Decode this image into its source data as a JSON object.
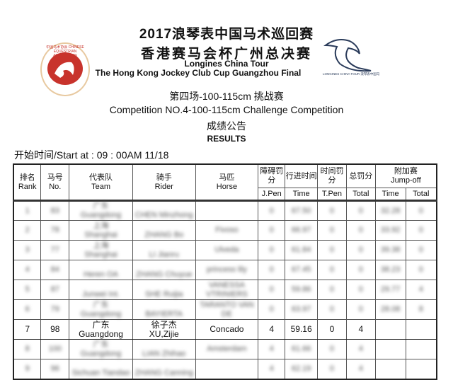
{
  "header": {
    "title_cn_1": "2017浪琴表中国马术巡回赛",
    "title_cn_2": "香港赛马会杯广州总决赛",
    "title_en_1": "Longines China Tour",
    "title_en_2": "The Hong Kong Jockey Club Cup Guangzhou Final",
    "right_logo_text": "LONGINES CHINA TOUR 浪琴表中国马术巡回赛",
    "left_logo_text": "中国马术协会 CHINESE EQUESTRIAN ASSOCIATION"
  },
  "competition": {
    "cn": "第四场-100-115cm 挑战赛",
    "en": "Competition NO.4-100-115cm Challenge Competition",
    "results_cn": "成绩公告",
    "results_en": "RESULTS",
    "start": "开始时间/Start at : 09 : 00AM 11/18"
  },
  "columns": {
    "rank_cn": "排名",
    "rank_en": "Rank",
    "no_cn": "马号",
    "no_en": "No.",
    "team_cn": "代表队",
    "team_en": "Team",
    "rider_cn": "骑手",
    "rider_en": "Rider",
    "horse_cn": "马匹",
    "horse_en": "Horse",
    "jpen_cn": "障碍罚分",
    "jpen_en": "J.Pen",
    "time_cn": "行进时间",
    "time_en": "Time",
    "tpen_cn": "时间罚分",
    "tpen_en": "T.Pen",
    "total_cn": "总罚分",
    "total_en": "Total",
    "jumpoff_cn": "附加赛",
    "jumpoff_en": "Jump-off",
    "jo_time": "Time",
    "jo_total": "Total"
  },
  "rows": [
    {
      "rank": "1",
      "no": "83",
      "team_cn": "广东",
      "team_en": "Guangdong",
      "rider_cn": "",
      "rider_en": "CHEN Minzhong",
      "horse": "",
      "jpen": "0",
      "time": "67.50",
      "tpen": "0",
      "total": "0",
      "jo_time": "32.28",
      "jo_total": "0",
      "blur": true
    },
    {
      "rank": "2",
      "no": "78",
      "team_cn": "上海",
      "team_en": "Shanghai",
      "rider_cn": "",
      "rider_en": "ZHANG Bo",
      "horse": "Fivoso",
      "jpen": "0",
      "time": "66.97",
      "tpen": "0",
      "total": "0",
      "jo_time": "33.92",
      "jo_total": "0",
      "blur": true
    },
    {
      "rank": "3",
      "no": "77",
      "team_cn": "上海",
      "team_en": "Shanghai",
      "rider_cn": "",
      "rider_en": "LI Jianru",
      "horse": "Ulveda",
      "jpen": "0",
      "time": "61.84",
      "tpen": "0",
      "total": "0",
      "jo_time": "39.38",
      "jo_total": "0",
      "blur": true
    },
    {
      "rank": "4",
      "no": "84",
      "team_cn": "",
      "team_en": "Heren OA",
      "rider_cn": "",
      "rider_en": "ZHANG Chuyue",
      "horse": "princess lily",
      "jpen": "0",
      "time": "67.45",
      "tpen": "0",
      "total": "0",
      "jo_time": "38.23",
      "jo_total": "0",
      "blur": true
    },
    {
      "rank": "5",
      "no": "87",
      "team_cn": "",
      "team_en": "Junwei Int.",
      "rider_cn": "",
      "rider_en": "SHE Ruijia",
      "horse": "VANESSA VTRINIERS",
      "jpen": "0",
      "time": "59.86",
      "tpen": "0",
      "total": "0",
      "jo_time": "29.77",
      "jo_total": "4",
      "blur": true
    },
    {
      "rank": "6",
      "no": "79",
      "team_cn": "广东",
      "team_en": "Guangdong",
      "rider_cn": "",
      "rider_en": "BAYIERTA",
      "horse": "TARANTO VAN DE",
      "jpen": "0",
      "time": "63.97",
      "tpen": "0",
      "total": "0",
      "jo_time": "28.08",
      "jo_total": "8",
      "blur": true
    },
    {
      "rank": "7",
      "no": "98",
      "team_cn": "广东",
      "team_en": "Guangdong",
      "rider_cn": "徐子杰",
      "rider_en": "XU,Zijie",
      "horse": "Concado",
      "jpen": "4",
      "time": "59.16",
      "tpen": "0",
      "total": "4",
      "jo_time": "",
      "jo_total": "",
      "blur": false
    },
    {
      "rank": "8",
      "no": "100",
      "team_cn": "广东",
      "team_en": "Guangdong",
      "rider_cn": "",
      "rider_en": "LIAN Zhihao",
      "horse": "Amsterdam",
      "jpen": "4",
      "time": "61.66",
      "tpen": "0",
      "total": "4",
      "jo_time": "",
      "jo_total": "",
      "blur": true
    },
    {
      "rank": "9",
      "no": "96",
      "team_cn": "",
      "team_en": "Sichuan Tiandao",
      "rider_cn": "",
      "rider_en": "ZHANG Canning",
      "horse": "",
      "jpen": "4",
      "time": "62.19",
      "tpen": "0",
      "total": "4",
      "jo_time": "",
      "jo_total": "",
      "blur": true
    }
  ]
}
